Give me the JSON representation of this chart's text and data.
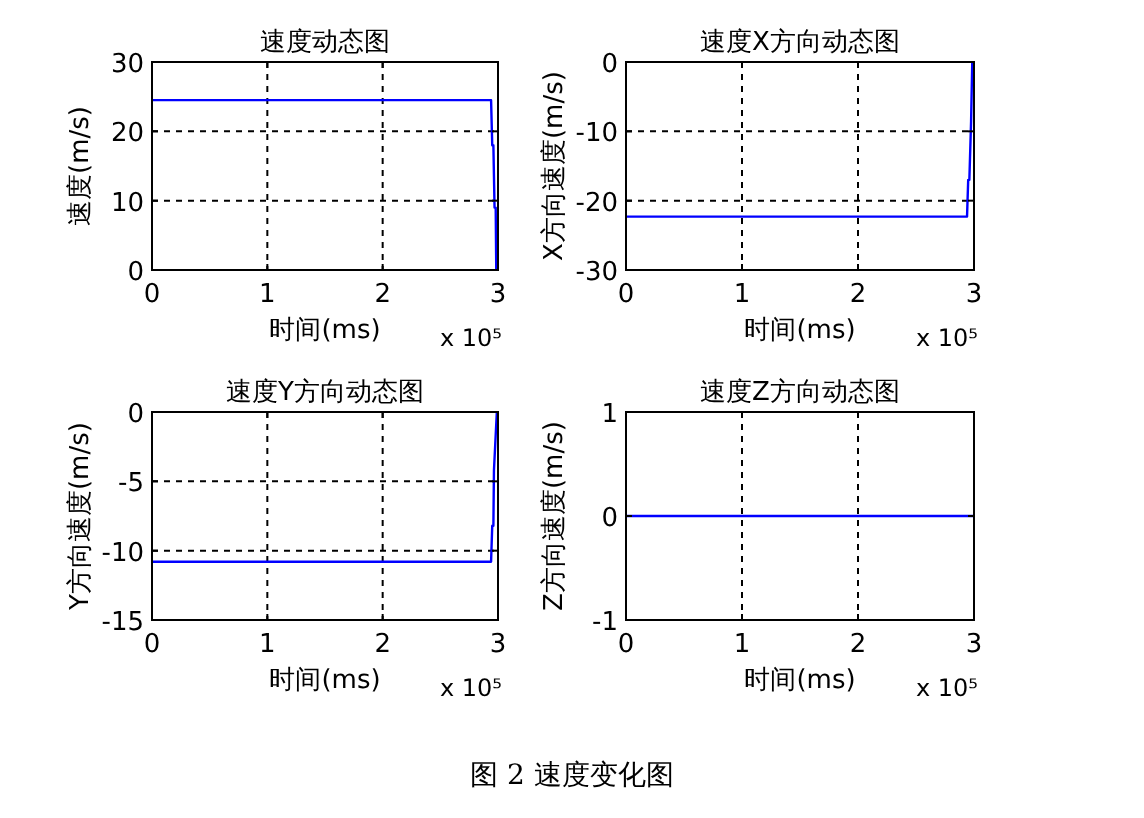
{
  "chart_data": [
    {
      "type": "line",
      "title": "速度动态图",
      "xlabel": "时间(ms)",
      "ylabel": "速度(m/s)",
      "xlim": [
        0,
        3
      ],
      "xticks": [
        0,
        1,
        2,
        3
      ],
      "ylim": [
        0,
        30
      ],
      "yticks": [
        0,
        10,
        20,
        30
      ],
      "grid": true,
      "annotations": [
        "x 10⁵"
      ],
      "series": [
        {
          "color": "#0000ff",
          "x": [
            0,
            2.94,
            2.95,
            2.96,
            2.97,
            2.98,
            2.985
          ],
          "values": [
            24.5,
            24.5,
            18,
            18,
            9,
            9,
            0
          ]
        }
      ]
    },
    {
      "type": "line",
      "title": "速度X方向动态图",
      "xlabel": "时间(ms)",
      "ylabel": "X方向速度(m/s)",
      "xlim": [
        0,
        3
      ],
      "xticks": [
        0,
        1,
        2,
        3
      ],
      "ylim": [
        -30,
        0
      ],
      "yticks": [
        -30,
        -20,
        -10,
        0
      ],
      "grid": true,
      "annotations": [
        "x 10⁵"
      ],
      "series": [
        {
          "color": "#0000ff",
          "x": [
            0,
            2.94,
            2.95,
            2.96,
            2.975,
            2.985
          ],
          "values": [
            -22.3,
            -22.3,
            -17,
            -17,
            -8.5,
            0
          ]
        }
      ]
    },
    {
      "type": "line",
      "title": "速度Y方向动态图",
      "xlabel": "时间(ms)",
      "ylabel": "Y方向速度(m/s)",
      "xlim": [
        0,
        3
      ],
      "xticks": [
        0,
        1,
        2,
        3
      ],
      "ylim": [
        -15,
        0
      ],
      "yticks": [
        -15,
        -10,
        -5,
        0
      ],
      "grid": true,
      "annotations": [
        "x 10⁵"
      ],
      "series": [
        {
          "color": "#0000ff",
          "x": [
            0,
            2.94,
            2.95,
            2.96,
            2.965,
            2.99
          ],
          "values": [
            -10.8,
            -10.8,
            -8.2,
            -8.2,
            -4.2,
            0
          ]
        }
      ]
    },
    {
      "type": "line",
      "title": "速度Z方向动态图",
      "xlabel": "时间(ms)",
      "ylabel": "Z方向速度(m/s)",
      "xlim": [
        0,
        3
      ],
      "xticks": [
        0,
        1,
        2,
        3
      ],
      "ylim": [
        -1,
        1
      ],
      "yticks": [
        -1,
        0,
        1
      ],
      "grid": true,
      "annotations": [
        "x 10⁵",
        "图 2 速度变化图"
      ],
      "series": [
        {
          "color": "#0000ff",
          "x": [
            0,
            3
          ],
          "values": [
            0,
            0
          ]
        }
      ]
    }
  ]
}
